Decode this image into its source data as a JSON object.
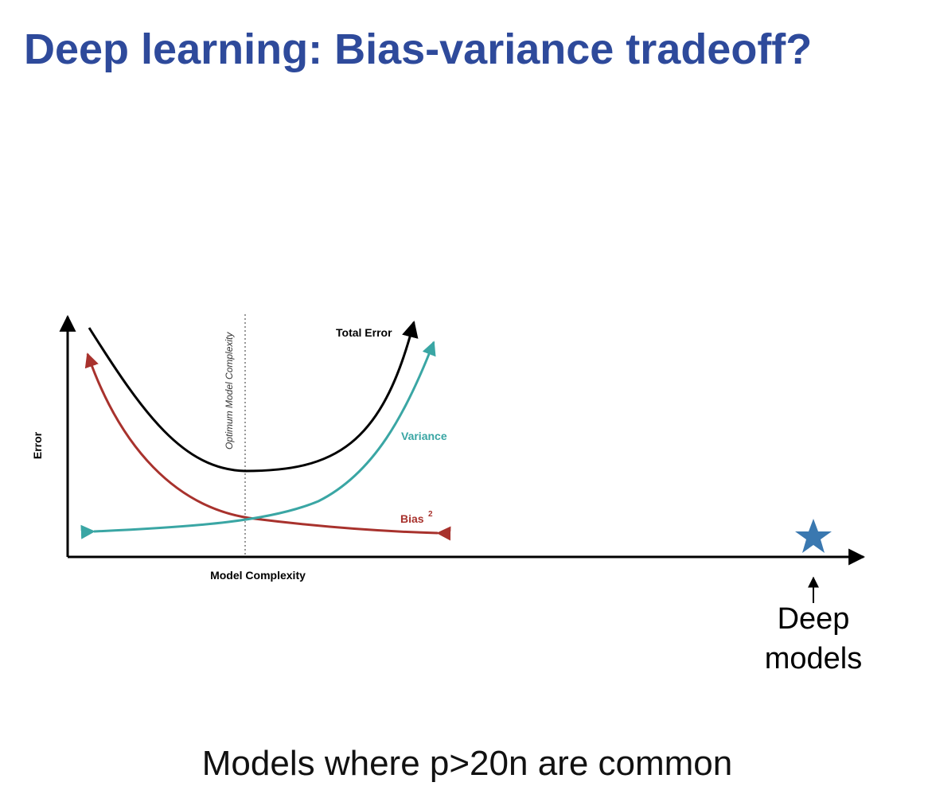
{
  "title": "Deep learning: Bias-variance tradeoff?",
  "diagram": {
    "y_axis_label": "Error",
    "x_axis_label": "Model Complexity",
    "optimum_label": "Optimum Model Complexity",
    "curves": [
      {
        "label": "Total Error"
      },
      {
        "label": "Variance"
      },
      {
        "label": "Bias",
        "superscript": "2"
      }
    ],
    "marker": {
      "label_lines": [
        "Deep",
        "models"
      ]
    }
  },
  "caption": "Models where p>20n are common"
}
